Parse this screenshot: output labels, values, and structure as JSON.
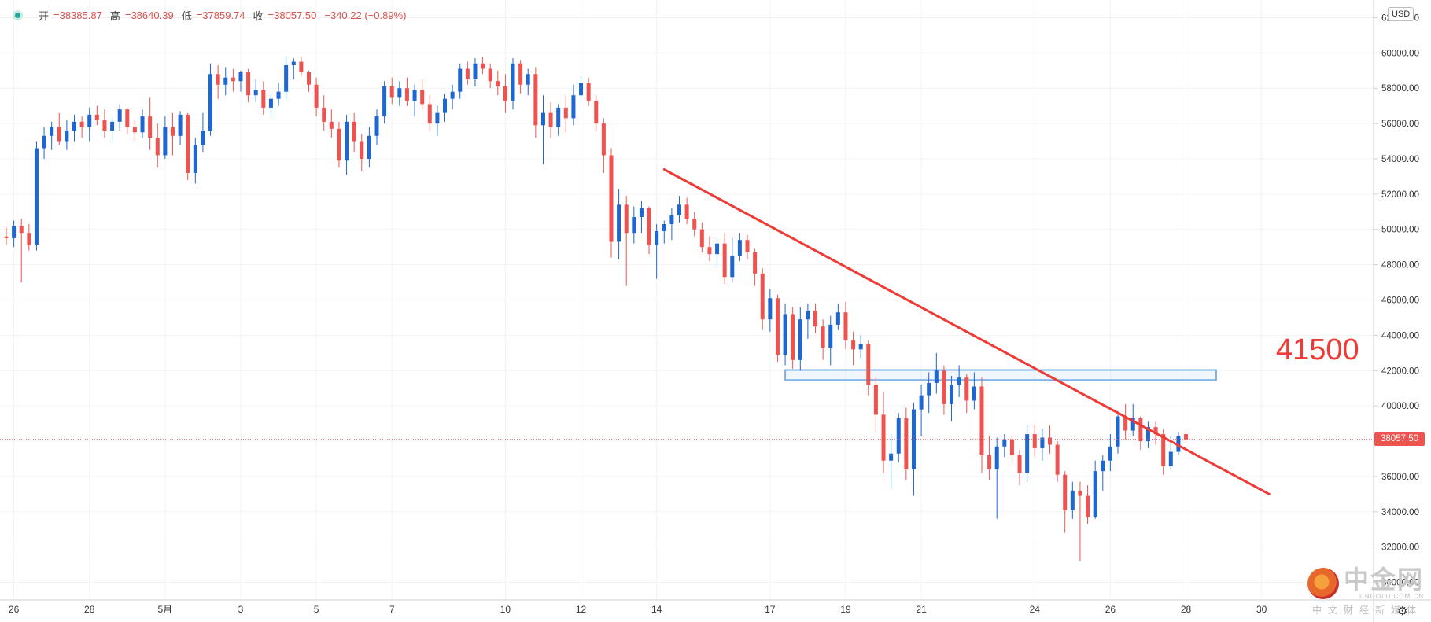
{
  "ohlc": {
    "open_label": "开",
    "open": "=38385.87",
    "high_label": "高",
    "high": "=38640.39",
    "low_label": "低",
    "low": "=37859.74",
    "close_label": "收",
    "close": "=38057.50",
    "change": "−340.22 (−0.89%)"
  },
  "currency": "USD",
  "last_price": "38057.50",
  "annotation": "41500",
  "watermark": {
    "name": "中金网",
    "url": "CNGOLD.COM.CN",
    "slogan": "中文财经新媒体"
  },
  "colors": {
    "up": "#1e66d0",
    "down": "#ef5350",
    "trendline": "#ef3b36",
    "zone": "#7fb2e8"
  },
  "chart_data": {
    "type": "candlestick",
    "ylim": [
      29000,
      63000
    ],
    "y_ticks": [
      62000,
      60000,
      58000,
      56000,
      54000,
      52000,
      50000,
      48000,
      46000,
      44000,
      42000,
      40000,
      38000,
      36000,
      34000,
      32000,
      30000
    ],
    "x_ticks": [
      {
        "label": "26",
        "index": 1
      },
      {
        "label": "28",
        "index": 11
      },
      {
        "label": "5月",
        "index": 21
      },
      {
        "label": "3",
        "index": 31
      },
      {
        "label": "5",
        "index": 41
      },
      {
        "label": "7",
        "index": 51
      },
      {
        "label": "10",
        "index": 66
      },
      {
        "label": "12",
        "index": 76
      },
      {
        "label": "14",
        "index": 86
      },
      {
        "label": "17",
        "index": 101
      },
      {
        "label": "19",
        "index": 111
      },
      {
        "label": "21",
        "index": 121
      },
      {
        "label": "24",
        "index": 136
      },
      {
        "label": "26",
        "index": 146
      },
      {
        "label": "28",
        "index": 156
      },
      {
        "label": "30",
        "index": 166
      }
    ],
    "x_range": [
      0,
      178
    ],
    "candles": [
      [
        49600,
        50100,
        49100,
        49500
      ],
      [
        49500,
        50500,
        49000,
        50200
      ],
      [
        50200,
        50600,
        47000,
        49800
      ],
      [
        49800,
        50300,
        48800,
        49100
      ],
      [
        49100,
        55000,
        48800,
        54600
      ],
      [
        54600,
        55800,
        54000,
        55300
      ],
      [
        55300,
        56100,
        54500,
        55800
      ],
      [
        55800,
        56600,
        54800,
        55000
      ],
      [
        55000,
        56200,
        54500,
        55600
      ],
      [
        55600,
        56500,
        55000,
        56100
      ],
      [
        56100,
        56400,
        55200,
        55800
      ],
      [
        55800,
        56900,
        55000,
        56500
      ],
      [
        56500,
        57000,
        55900,
        56200
      ],
      [
        56200,
        56800,
        55200,
        55600
      ],
      [
        55600,
        56400,
        55000,
        56100
      ],
      [
        56100,
        57100,
        55600,
        56800
      ],
      [
        56800,
        56900,
        55400,
        55800
      ],
      [
        55800,
        56200,
        55000,
        55500
      ],
      [
        55500,
        56800,
        55200,
        56400
      ],
      [
        56400,
        57500,
        54500,
        55200
      ],
      [
        55200,
        56000,
        53500,
        54200
      ],
      [
        54200,
        56400,
        54000,
        55800
      ],
      [
        55800,
        56600,
        54200,
        55300
      ],
      [
        55300,
        56700,
        54800,
        56500
      ],
      [
        56500,
        56600,
        52800,
        53200
      ],
      [
        53200,
        55200,
        52600,
        54800
      ],
      [
        54800,
        56600,
        54400,
        55600
      ],
      [
        55600,
        59400,
        55300,
        58800
      ],
      [
        58800,
        59300,
        57400,
        58200
      ],
      [
        58200,
        59200,
        57600,
        58600
      ],
      [
        58600,
        59100,
        57800,
        58400
      ],
      [
        58400,
        59000,
        57800,
        58900
      ],
      [
        58900,
        59100,
        57200,
        57600
      ],
      [
        57600,
        58500,
        57200,
        57900
      ],
      [
        57900,
        58400,
        56500,
        56900
      ],
      [
        56900,
        57600,
        56300,
        57400
      ],
      [
        57400,
        58300,
        57000,
        57800
      ],
      [
        57800,
        59800,
        57400,
        59300
      ],
      [
        59300,
        59700,
        58500,
        59500
      ],
      [
        59500,
        59800,
        58700,
        58900
      ],
      [
        58900,
        59000,
        57800,
        58200
      ],
      [
        58200,
        58600,
        56400,
        56900
      ],
      [
        56900,
        57600,
        55600,
        56100
      ],
      [
        56100,
        56800,
        55200,
        55700
      ],
      [
        55700,
        56100,
        53500,
        53900
      ],
      [
        53900,
        56500,
        53100,
        56100
      ],
      [
        56100,
        56600,
        54400,
        55000
      ],
      [
        55000,
        55400,
        53300,
        54000
      ],
      [
        54000,
        55800,
        53500,
        55300
      ],
      [
        55300,
        56800,
        54800,
        56400
      ],
      [
        56400,
        58400,
        56000,
        58100
      ],
      [
        58100,
        58600,
        57100,
        57500
      ],
      [
        57500,
        58400,
        57000,
        58000
      ],
      [
        58000,
        58600,
        57000,
        57300
      ],
      [
        57300,
        58200,
        56400,
        57900
      ],
      [
        57900,
        58500,
        56800,
        57100
      ],
      [
        57100,
        57600,
        55600,
        56000
      ],
      [
        56000,
        57000,
        55300,
        56600
      ],
      [
        56600,
        57700,
        56100,
        57400
      ],
      [
        57400,
        58200,
        56800,
        57800
      ],
      [
        57800,
        59400,
        57400,
        59100
      ],
      [
        59100,
        59500,
        58200,
        58500
      ],
      [
        58500,
        59700,
        58100,
        59400
      ],
      [
        59400,
        59800,
        58800,
        59100
      ],
      [
        59100,
        59400,
        58000,
        58400
      ],
      [
        58400,
        59000,
        57600,
        58100
      ],
      [
        58100,
        58800,
        56600,
        57300
      ],
      [
        57300,
        59700,
        56800,
        59400
      ],
      [
        59400,
        59600,
        57700,
        58200
      ],
      [
        58200,
        59100,
        57600,
        58800
      ],
      [
        58800,
        59200,
        55200,
        55900
      ],
      [
        55900,
        57600,
        53700,
        56600
      ],
      [
        56600,
        57200,
        55200,
        55800
      ],
      [
        55800,
        57100,
        55300,
        56900
      ],
      [
        56900,
        57600,
        55500,
        56300
      ],
      [
        56300,
        58200,
        55900,
        57600
      ],
      [
        57600,
        58700,
        57200,
        58300
      ],
      [
        58300,
        58600,
        57000,
        57300
      ],
      [
        57300,
        57600,
        55600,
        56000
      ],
      [
        56000,
        56300,
        53200,
        54200
      ],
      [
        54200,
        54600,
        48400,
        49300
      ],
      [
        49300,
        52300,
        48300,
        51400
      ],
      [
        51400,
        51900,
        46800,
        49800
      ],
      [
        49800,
        51300,
        49200,
        50700
      ],
      [
        50700,
        51600,
        49800,
        51200
      ],
      [
        51200,
        51300,
        48600,
        49100
      ],
      [
        49100,
        50300,
        47200,
        49900
      ],
      [
        49900,
        50500,
        49200,
        50300
      ],
      [
        50300,
        51200,
        49400,
        50800
      ],
      [
        50800,
        51900,
        50400,
        51400
      ],
      [
        51400,
        51800,
        50300,
        50600
      ],
      [
        50600,
        51000,
        49600,
        50000
      ],
      [
        50000,
        50400,
        48700,
        49000
      ],
      [
        49000,
        49600,
        48200,
        48600
      ],
      [
        48600,
        49500,
        47800,
        49200
      ],
      [
        49200,
        49800,
        46900,
        47300
      ],
      [
        47300,
        49500,
        47000,
        48500
      ],
      [
        48500,
        49800,
        48200,
        49400
      ],
      [
        49400,
        49700,
        48300,
        48700
      ],
      [
        48700,
        48900,
        46800,
        47500
      ],
      [
        47500,
        47800,
        44300,
        44900
      ],
      [
        44900,
        46600,
        44200,
        46100
      ],
      [
        46100,
        46300,
        42500,
        42900
      ],
      [
        42900,
        45800,
        42300,
        45200
      ],
      [
        45200,
        45600,
        42100,
        42600
      ],
      [
        42600,
        45600,
        42000,
        44900
      ],
      [
        44900,
        45800,
        43800,
        45400
      ],
      [
        45400,
        45800,
        44100,
        44500
      ],
      [
        44500,
        44900,
        42600,
        43300
      ],
      [
        43300,
        45100,
        42300,
        44600
      ],
      [
        44600,
        45800,
        44300,
        45300
      ],
      [
        45300,
        45900,
        43200,
        43700
      ],
      [
        43700,
        44200,
        42300,
        43200
      ],
      [
        43200,
        44000,
        42700,
        43500
      ],
      [
        43500,
        43700,
        40600,
        41200
      ],
      [
        41200,
        41600,
        38500,
        39500
      ],
      [
        39500,
        40800,
        36200,
        36900
      ],
      [
        36900,
        38400,
        35300,
        37300
      ],
      [
        37300,
        39600,
        36800,
        39300
      ],
      [
        39300,
        39900,
        35800,
        36400
      ],
      [
        36400,
        40200,
        34900,
        39800
      ],
      [
        39800,
        41200,
        38300,
        40600
      ],
      [
        40600,
        41900,
        39600,
        41300
      ],
      [
        41300,
        43000,
        40700,
        42000
      ],
      [
        42000,
        42300,
        39500,
        40100
      ],
      [
        40100,
        41700,
        39100,
        41200
      ],
      [
        41200,
        42300,
        40500,
        41600
      ],
      [
        41600,
        41800,
        39600,
        40300
      ],
      [
        40300,
        41900,
        39800,
        41100
      ],
      [
        41100,
        41600,
        36200,
        37200
      ],
      [
        37200,
        38300,
        35800,
        36400
      ],
      [
        36400,
        38200,
        33600,
        37700
      ],
      [
        37700,
        38400,
        37100,
        38100
      ],
      [
        38100,
        38300,
        36800,
        37200
      ],
      [
        37200,
        37500,
        35500,
        36200
      ],
      [
        36200,
        38900,
        35700,
        38400
      ],
      [
        38400,
        38900,
        37100,
        37600
      ],
      [
        37600,
        38700,
        36900,
        38200
      ],
      [
        38200,
        38900,
        37300,
        37800
      ],
      [
        37800,
        38000,
        35700,
        36100
      ],
      [
        36100,
        36300,
        32800,
        34100
      ],
      [
        34100,
        35700,
        33600,
        35200
      ],
      [
        35200,
        35700,
        31200,
        34900
      ],
      [
        34900,
        35500,
        33300,
        33700
      ],
      [
        33700,
        36900,
        33600,
        36300
      ],
      [
        36300,
        37200,
        35200,
        36900
      ],
      [
        36900,
        38400,
        36300,
        37700
      ],
      [
        37700,
        39700,
        37300,
        39400
      ],
      [
        39400,
        40100,
        38100,
        38600
      ],
      [
        38600,
        40100,
        38300,
        39300
      ],
      [
        39300,
        39400,
        37500,
        38000
      ],
      [
        38000,
        39100,
        37600,
        38800
      ],
      [
        38800,
        39100,
        37800,
        38400
      ],
      [
        38400,
        38700,
        36100,
        36600
      ],
      [
        36600,
        38300,
        36400,
        37400
      ],
      [
        37400,
        38500,
        37200,
        38300
      ],
      [
        38400,
        38600,
        37900,
        38100
      ]
    ],
    "trendline": {
      "from": [
        87,
        53400
      ],
      "to": [
        167,
        35000
      ]
    },
    "zone": {
      "from_index": 103,
      "to_index": 160,
      "low": 41600,
      "high": 41900
    }
  }
}
